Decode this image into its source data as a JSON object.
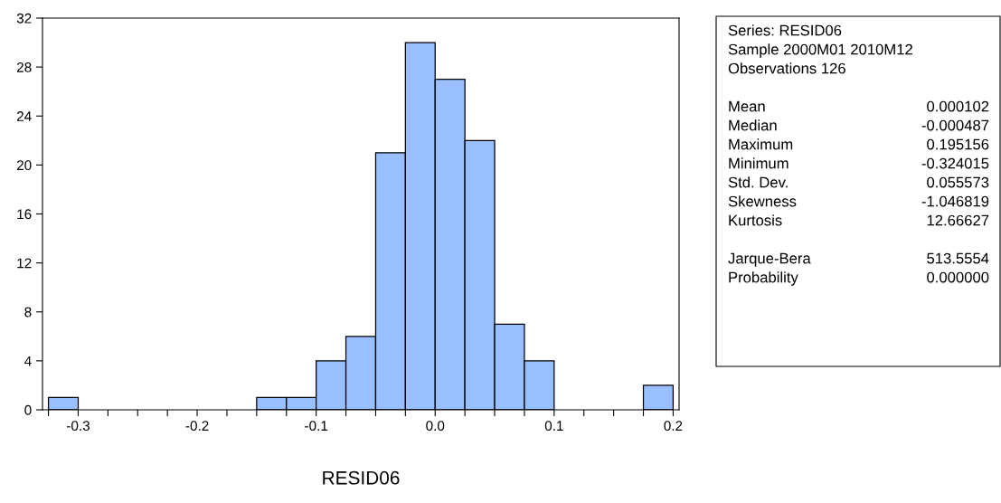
{
  "chart_data": {
    "type": "histogram",
    "xlabel": "RESID06",
    "bins": [
      -0.325,
      -0.3,
      -0.275,
      -0.25,
      -0.225,
      -0.2,
      -0.175,
      -0.15,
      -0.125,
      -0.1,
      -0.075,
      -0.05,
      -0.025,
      0.0,
      0.025,
      0.05,
      0.075,
      0.1,
      0.125,
      0.15,
      0.175,
      0.2
    ],
    "values": [
      1,
      0,
      0,
      0,
      0,
      0,
      0,
      1,
      1,
      4,
      6,
      21,
      30,
      27,
      22,
      7,
      4,
      0,
      0,
      0,
      2
    ],
    "color": "#99bfff",
    "xlim": [
      -0.33,
      0.205
    ],
    "xticks": [
      {
        "value": -0.325,
        "label": null
      },
      {
        "value": -0.3,
        "label": "-0.3"
      },
      {
        "value": -0.275,
        "label": null
      },
      {
        "value": -0.25,
        "label": null
      },
      {
        "value": -0.225,
        "label": null
      },
      {
        "value": -0.2,
        "label": "-0.2"
      },
      {
        "value": -0.175,
        "label": null
      },
      {
        "value": -0.15,
        "label": null
      },
      {
        "value": -0.125,
        "label": null
      },
      {
        "value": -0.1,
        "label": "-0.1"
      },
      {
        "value": -0.075,
        "label": null
      },
      {
        "value": -0.05,
        "label": null
      },
      {
        "value": -0.025,
        "label": null
      },
      {
        "value": 0.0,
        "label": "0.0"
      },
      {
        "value": 0.025,
        "label": null
      },
      {
        "value": 0.05,
        "label": null
      },
      {
        "value": 0.075,
        "label": null
      },
      {
        "value": 0.1,
        "label": "0.1"
      },
      {
        "value": 0.125,
        "label": null
      },
      {
        "value": 0.15,
        "label": null
      },
      {
        "value": 0.175,
        "label": null
      },
      {
        "value": 0.2,
        "label": "0.2"
      }
    ],
    "ylim": [
      0,
      32
    ],
    "yticks": [
      0,
      4,
      8,
      12,
      16,
      20,
      24,
      28,
      32
    ],
    "grid": false,
    "annotations": [
      "Series: RESID06",
      "Sample 2000M01 2010M12",
      "Observations 126",
      "Mean",
      "0.000102",
      "Median",
      "-0.000487",
      "Maximum",
      "0.195156",
      "Minimum",
      "-0.324015",
      "Std. Dev.",
      "0.055573",
      "Skewness",
      "-1.046819",
      "Kurtosis",
      "12.66627",
      "Jarque-Bera",
      "513.5554",
      "Probability",
      "0.000000"
    ]
  }
}
